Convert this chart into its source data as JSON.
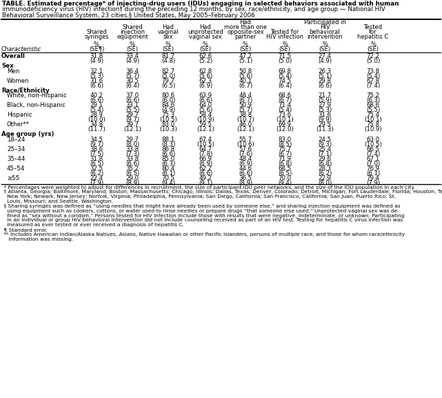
{
  "title_lines": [
    "TABLE. Estimated percentage* of injecting-drug users (IDUs) engaging in selected behaviors associated with human",
    "immunodeficiency virus (HIV) infection† during the preceding 12 months, by sex, race/ethnicity, and age group — National HIV",
    "Behavioral Surveillance System, 23 cities,§ United States, May 2005–February 2006"
  ],
  "col_headers": [
    [
      "Shared",
      "syringes"
    ],
    [
      "Shared",
      "injection",
      "equipment"
    ],
    [
      "Had",
      "vaginal",
      "sex"
    ],
    [
      "Had",
      "unprotected",
      "vaginal sex"
    ],
    [
      "Had",
      "more than one",
      "opposite-sex",
      "partner"
    ],
    [
      "Tested for",
      "HIV infection"
    ],
    [
      "Participated in",
      "HIV",
      "behavioral",
      "intervention"
    ],
    [
      "Tested",
      "for",
      "hepatitis C"
    ]
  ],
  "col_pct": [
    "%",
    "%",
    "%",
    "%",
    "%",
    "%",
    "%",
    "%"
  ],
  "col_se": [
    "(SE¶)",
    "(SE)",
    "(SE)",
    "(SE)",
    "(SE)",
    "(SE)",
    "(SE)",
    "(SE)"
  ],
  "char_label": "Characteristic",
  "rows": [
    {
      "label": "Overall",
      "indent": 0,
      "bold": true,
      "section": false,
      "values": [
        [
          "31.8",
          "(4.9)"
        ],
        [
          "33.4",
          "(4.9)"
        ],
        [
          "81.7",
          "(4.8)"
        ],
        [
          "62.6",
          "(5.2)"
        ],
        [
          "47.2",
          "(5.1)"
        ],
        [
          "71.5",
          "(5.0)"
        ],
        [
          "27.4",
          "(4.9)"
        ],
        [
          "72.2",
          "(5.0)"
        ]
      ]
    },
    {
      "label": "Sex",
      "indent": 0,
      "bold": true,
      "section": true
    },
    {
      "label": "Men",
      "indent": 1,
      "bold": false,
      "section": false,
      "values": [
        [
          "32.1",
          "(5.3)"
        ],
        [
          "36.4",
          "(5.7)"
        ],
        [
          "82.7",
          "(5.0)"
        ],
        [
          "62.8",
          "(5.6)"
        ],
        [
          "50.8",
          "(5.6)"
        ],
        [
          "69.8",
          "(5.4)"
        ],
        [
          "26.3",
          "(5.1)"
        ],
        [
          "73.8",
          "(5.4)"
        ]
      ]
    },
    {
      "label": "Women",
      "indent": 1,
      "bold": false,
      "section": false,
      "values": [
        [
          "31.6",
          "(6.6)"
        ],
        [
          "30.5",
          "(6.4)"
        ],
        [
          "79.7",
          "(6.5)"
        ],
        [
          "62.3",
          "(6.9)"
        ],
        [
          "40.1",
          "(6.7)"
        ],
        [
          "74.5",
          "(6.4)"
        ],
        [
          "29.8",
          "(6.6)"
        ],
        [
          "67.8",
          "(7.4)"
        ]
      ]
    },
    {
      "label": "Race/Ethnicity",
      "indent": 0,
      "bold": true,
      "section": true
    },
    {
      "label": "White, non-Hispanic",
      "indent": 1,
      "bold": false,
      "section": false,
      "values": [
        [
          "40.2",
          "(6.6)"
        ],
        [
          "37.0",
          "(6.6)"
        ],
        [
          "80.6",
          "(6.0)"
        ],
        [
          "63.9",
          "(6.6)"
        ],
        [
          "48.4",
          "(6.7)"
        ],
        [
          "68.6",
          "(6.7)"
        ],
        [
          "21.7",
          "(5.9)"
        ],
        [
          "75.2",
          "(6.3)"
        ]
      ]
    },
    {
      "label": "Black, non-Hispanic",
      "indent": 1,
      "bold": false,
      "section": false,
      "values": [
        [
          "29.1",
          "(5.4)"
        ],
        [
          "33.1",
          "(5.5)"
        ],
        [
          "84.6",
          "(4.9)"
        ],
        [
          "64.0",
          "(5.6)"
        ],
        [
          "50.9",
          "(5.7)"
        ],
        [
          "71.4",
          "(5.4)"
        ],
        [
          "27.9",
          "(5.3)"
        ],
        [
          "68.6",
          "(5.5)"
        ]
      ]
    },
    {
      "label": "Hispanic",
      "indent": 1,
      "bold": false,
      "section": false,
      "values": [
        [
          "28.9",
          "(10.0)"
        ],
        [
          "29.7",
          "(9.7)"
        ],
        [
          "75.3",
          "(10.5)"
        ],
        [
          "58.4",
          "(10.9)"
        ],
        [
          "38.8",
          "(10.7)"
        ],
        [
          "73.6",
          "(10.1)"
        ],
        [
          "31.6",
          "(9.9)"
        ],
        [
          "75.4",
          "(10.1)"
        ]
      ]
    },
    {
      "label": "Other**",
      "indent": 1,
      "bold": false,
      "section": false,
      "values": [
        [
          "34.8",
          "(11.7)"
        ],
        [
          "39.7",
          "(12.1)"
        ],
        [
          "83.0",
          "(10.3)"
        ],
        [
          "59.5",
          "(12.1)"
        ],
        [
          "46.0",
          "(12.1)"
        ],
        [
          "69.9",
          "(12.0)"
        ],
        [
          "29.5",
          "(11.3)"
        ],
        [
          "75.8",
          "(10.9)"
        ]
      ]
    },
    {
      "label": "Age group (yrs)",
      "indent": 0,
      "bold": true,
      "section": true
    },
    {
      "label": "18–24",
      "indent": 1,
      "bold": false,
      "section": false,
      "values": [
        [
          "34.5",
          "(9.7)"
        ],
        [
          "29.7",
          "(8.0)"
        ],
        [
          "88.1",
          "(8.3)"
        ],
        [
          "67.4",
          "(10.5)"
        ],
        [
          "55.7",
          "(10.6)"
        ],
        [
          "83.0",
          "(8.5)"
        ],
        [
          "24.5",
          "(9.3)"
        ],
        [
          "63.0",
          "(10.5)"
        ]
      ]
    },
    {
      "label": "25–34",
      "indent": 1,
      "bold": false,
      "section": false,
      "values": [
        [
          "38.6",
          "(7.5)"
        ],
        [
          "33.8",
          "(7.3)"
        ],
        [
          "86.8",
          "(6.6)"
        ],
        [
          "64.7",
          "(7.8)"
        ],
        [
          "57.6",
          "(7.6)"
        ],
        [
          "75.7",
          "(6.7)"
        ],
        [
          "25.4",
          "(7.1)"
        ],
        [
          "66.5",
          "(7.4)"
        ]
      ]
    },
    {
      "label": "35–44",
      "indent": 1,
      "bold": false,
      "section": false,
      "values": [
        [
          "31.8",
          "(6.5)"
        ],
        [
          "33.8",
          "(6.6)"
        ],
        [
          "85.0",
          "(6.3)"
        ],
        [
          "66.9",
          "(6.9)"
        ],
        [
          "48.4",
          "(6.9)"
        ],
        [
          "71.9",
          "(6.8)"
        ],
        [
          "29.6",
          "(6.8)"
        ],
        [
          "67.1",
          "(7.0)"
        ]
      ]
    },
    {
      "label": "45–54",
      "indent": 1,
      "bold": false,
      "section": false,
      "values": [
        [
          "32.5",
          "(6.2)"
        ],
        [
          "35.2",
          "(6.5)"
        ],
        [
          "80.4",
          "(6.1)"
        ],
        [
          "62.2",
          "(6.6)"
        ],
        [
          "44.6",
          "(6.6)"
        ],
        [
          "68.5",
          "(6.5)"
        ],
        [
          "28.3",
          "(6.2)"
        ],
        [
          "76.9",
          "(6.1)"
        ]
      ]
    },
    {
      "label": "≥55",
      "indent": 1,
      "bold": false,
      "section": false,
      "values": [
        [
          "22.4",
          "(7.9)"
        ],
        [
          "29.0",
          "(8.9)"
        ],
        [
          "70.5",
          "(9.4)"
        ],
        [
          "49.2",
          "(9.1)"
        ],
        [
          "36.5",
          "(8.9)"
        ],
        [
          "70.0",
          "(9.4)"
        ],
        [
          "22.9",
          "(8.0)"
        ],
        [
          "79.4",
          "(7.9)"
        ]
      ]
    }
  ],
  "footnotes": [
    " * Percentages were weighted to adjust for differences in recruitment, the size of participant IDU peer networks, and the size of the IDU population in each city.",
    " † Atlanta, Georgia; Baltimore, Maryland; Boston, Massachusetts; Chicago, Illinois; Dallas, Texas; Denver, Colorado; Detroit, Michigan; Fort Lauderdale, Florida; Houston, Texas; Las Vegas, Nevada; Los Angeles, California; Miami, Florida; Nassau-Suffolk, New York; New Haven, Connecticut; New York,",
    "   New York; Newark, New Jersey; Norfolk, Virginia; Philadelphia, Pennsylvania; San Diego, California; San Francisco, California; San Juan, Puerto Rico; St.",
    "   Louis, Missouri; and Seattle, Washington.",
    " § Sharing syringes was defined as “using needles that might have already been used by someone else,” and sharing injection equipment was defined as",
    "   using equipment such as cookers, cottons, or water used to rinse needles or prepare drugs “that someone else used.” Unprotected vaginal sex was de-",
    "   fined as “sex without a condom.” Persons tested for HIV infection include those with results that were negative, indeterminate, or unknown. Participating",
    "   in an individual or group HIV behavioral intervention did not include counseling received as part of an HIV test. Testing for hepatitis C virus infection was",
    "   measured as ever tested or ever received a diagnosis of hepatitis C.",
    " ¶ Standard error.",
    " ** Includes American Indian/Alaska Natives, Asians, Native Hawaiian or other Pacific Islanders, persons of multiple race, and those for whom race/ethnicity",
    "    information was missing."
  ],
  "bg_color": "#ffffff",
  "text_color": "#000000"
}
